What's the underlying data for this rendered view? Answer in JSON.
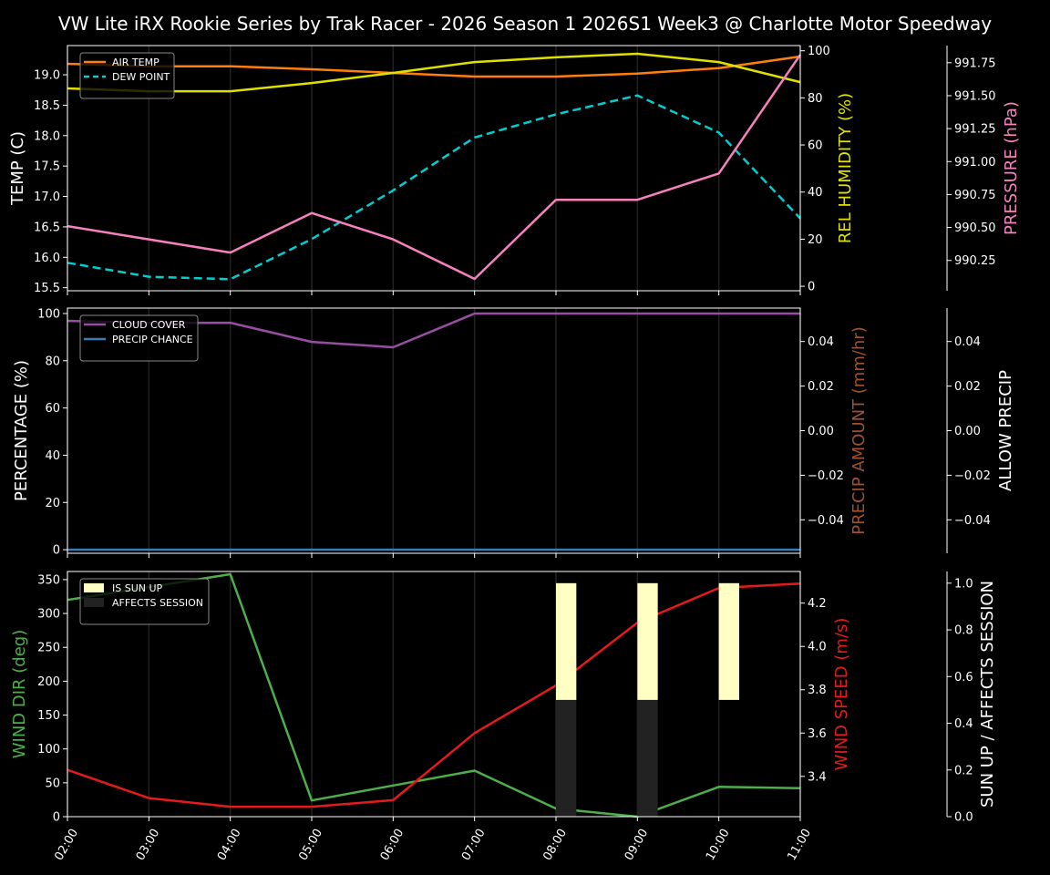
{
  "title": "VW Lite iRX Rookie Series by Trak Racer - 2026 Season 1 2026S1 Week3 @ Charlotte Motor Speedway",
  "chart_data": {
    "type": "line",
    "title": "VW Lite iRX Rookie Series by Trak Racer - 2026 Season 1 2026S1 Week3 @ Charlotte Motor Speedway",
    "x": [
      "02:00",
      "03:00",
      "04:00",
      "05:00",
      "06:00",
      "07:00",
      "08:00",
      "09:00",
      "10:00",
      "11:00"
    ],
    "grid": "vertical",
    "panels": [
      {
        "legend_placement": "upper-left",
        "legend": [
          {
            "label": "AIR TEMP",
            "color": "#ff7f0e",
            "style": "solid"
          },
          {
            "label": "DEW POINT",
            "color": "#00ced1",
            "style": "dashed"
          }
        ],
        "axes": [
          {
            "side": "left",
            "label": "TEMP (C)",
            "label_color": "#ffffff",
            "ylim": [
              15.45,
              19.48
            ],
            "ticks": [
              15.5,
              16.0,
              16.5,
              17.0,
              17.5,
              18.0,
              18.5,
              19.0
            ],
            "tick_labels": [
              "15.5",
              "16.0",
              "16.5",
              "17.0",
              "17.5",
              "18.0",
              "18.5",
              "19.0"
            ],
            "series": [
              {
                "name": "AIR TEMP",
                "kind": "line",
                "color": "#ff7f0e",
                "dashed": false,
                "values": [
                  19.18,
                  19.14,
                  19.14,
                  19.09,
                  19.03,
                  18.97,
                  18.97,
                  19.02,
                  19.11,
                  19.3
                ]
              },
              {
                "name": "DEW POINT",
                "kind": "line",
                "color": "#00ced1",
                "dashed": true,
                "values": [
                  15.91,
                  15.68,
                  15.64,
                  16.3,
                  17.1,
                  17.97,
                  18.35,
                  18.66,
                  18.05,
                  16.64
                ]
              }
            ]
          },
          {
            "side": "right",
            "label": "REL HUMIDITY (%)",
            "label_color": "#e0e000",
            "ylim": [
              -1.9,
              102.2
            ],
            "ticks": [
              0,
              20,
              40,
              60,
              80,
              100
            ],
            "tick_labels": [
              "0",
              "20",
              "40",
              "60",
              "80",
              "100"
            ],
            "series": [
              {
                "kind": "line",
                "color": "#e0e000",
                "dashed": false,
                "values": [
                  84.0,
                  82.8,
                  82.8,
                  86.3,
                  90.6,
                  95.2,
                  97.2,
                  98.7,
                  95.2,
                  86.7
                ]
              }
            ]
          },
          {
            "side": "outer",
            "label": "PRESSURE (hPa)",
            "label_color": "#f781bf",
            "ylim": [
              990.02,
              991.88
            ],
            "ticks": [
              990.25,
              990.5,
              990.75,
              991.0,
              991.25,
              991.5,
              991.75
            ],
            "tick_labels": [
              "990.25",
              "990.50",
              "990.75",
              "991.00",
              "991.25",
              "991.50",
              "991.75"
            ],
            "series": [
              {
                "kind": "line",
                "color": "#f781bf",
                "dashed": false,
                "values": [
                  990.51,
                  990.41,
                  990.31,
                  990.61,
                  990.41,
                  990.11,
                  990.71,
                  990.71,
                  990.91,
                  991.81
                ]
              }
            ]
          }
        ]
      },
      {
        "legend_placement": "upper-left",
        "legend": [
          {
            "label": "CLOUD COVER",
            "color": "#984ea3",
            "style": "solid"
          },
          {
            "label": "PRECIP CHANCE",
            "color": "#377eb8",
            "style": "solid"
          }
        ],
        "axes": [
          {
            "side": "left",
            "label": "PERCENTAGE (%)",
            "label_color": "#ffffff",
            "ylim": [
              -1.5,
              102.3
            ],
            "ticks": [
              0,
              20,
              40,
              60,
              80,
              100
            ],
            "tick_labels": [
              "0",
              "20",
              "40",
              "60",
              "80",
              "100"
            ],
            "series": [
              {
                "name": "CLOUD COVER",
                "kind": "line",
                "color": "#984ea3",
                "dashed": false,
                "values": [
                  96.9,
                  96.0,
                  96.1,
                  88.0,
                  85.7,
                  100,
                  100,
                  100,
                  100,
                  100
                ]
              },
              {
                "name": "PRECIP CHANCE",
                "kind": "line",
                "color": "#377eb8",
                "dashed": false,
                "values": [
                  0,
                  0,
                  0,
                  0,
                  0,
                  0,
                  0,
                  0,
                  0,
                  0
                ]
              }
            ]
          },
          {
            "side": "right",
            "label": "PRECIP AMOUNT (mm/hr)",
            "label_color": "#a0522d",
            "ylim": [
              -0.055,
              0.055
            ],
            "ticks": [
              -0.04,
              -0.02,
              0,
              0.02,
              0.04
            ],
            "tick_labels": [
              "−0.04",
              "−0.02",
              "0.00",
              "0.02",
              "0.04"
            ],
            "series": []
          },
          {
            "side": "outer",
            "label": "ALLOW PRECIP",
            "label_color": "#ffffff",
            "ylim": [
              -0.055,
              0.055
            ],
            "ticks": [
              -0.04,
              -0.02,
              0,
              0.02,
              0.04
            ],
            "tick_labels": [
              "−0.04",
              "−0.02",
              "0.00",
              "0.02",
              "0.04"
            ],
            "series": []
          }
        ]
      },
      {
        "legend_placement": "upper-left",
        "legend": [
          {
            "label": "IS SUN UP",
            "color": "#ffffc4",
            "style": "patch"
          },
          {
            "label": "AFFECTS SESSION",
            "color": "#222222",
            "style": "patch"
          }
        ],
        "axes": [
          {
            "side": "left",
            "label": "WIND DIR (deg)",
            "label_color": "#4daf4a",
            "ylim": [
              0,
              362
            ],
            "ticks": [
              0,
              50,
              100,
              150,
              200,
              250,
              300,
              350
            ],
            "tick_labels": [
              "0",
              "50",
              "100",
              "150",
              "200",
              "250",
              "300",
              "350"
            ],
            "series": [
              {
                "kind": "line",
                "color": "#4daf4a",
                "dashed": false,
                "values": [
                  320,
                  339,
                  358,
                  24,
                  46,
                  68,
                  12,
                  0,
                  44,
                  42
                ]
              }
            ]
          },
          {
            "side": "right",
            "label": "WIND SPEED (m/s)",
            "label_color": "#e41a1c",
            "ylim": [
              3.214,
              4.346
            ],
            "ticks": [
              3.4,
              3.6,
              3.8,
              4.0,
              4.2
            ],
            "tick_labels": [
              "3.4",
              "3.6",
              "3.8",
              "4.0",
              "4.2"
            ],
            "series": [
              {
                "kind": "line",
                "color": "#e41a1c",
                "dashed": false,
                "values": [
                  3.43,
                  3.3,
                  3.26,
                  3.26,
                  3.29,
                  3.6,
                  3.82,
                  4.11,
                  4.27,
                  4.29
                ]
              }
            ]
          },
          {
            "side": "outer",
            "label": "SUN UP / AFFECTS SESSION",
            "label_color": "#ffffff",
            "ylim": [
              0,
              1.05
            ],
            "ticks": [
              0,
              0.2,
              0.4,
              0.6,
              0.8,
              1.0
            ],
            "tick_labels": [
              "0.0",
              "0.2",
              "0.4",
              "0.6",
              "0.8",
              "1.0"
            ],
            "series": [
              {
                "name": "AFFECTS SESSION",
                "kind": "bar",
                "color": "#222222",
                "bar_width_hours": 0.25,
                "bottom": 0,
                "values": [
                  0,
                  0,
                  0,
                  0,
                  0,
                  0,
                  0.5,
                  0.5,
                  0,
                  0
                ]
              },
              {
                "name": "IS SUN UP",
                "kind": "bar",
                "color": "#ffffc4",
                "bar_width_hours": 0.25,
                "bottom": 0.5,
                "values": [
                  0,
                  0,
                  0,
                  0,
                  0,
                  0,
                  1,
                  1,
                  1,
                  0
                ]
              }
            ]
          }
        ]
      }
    ]
  }
}
